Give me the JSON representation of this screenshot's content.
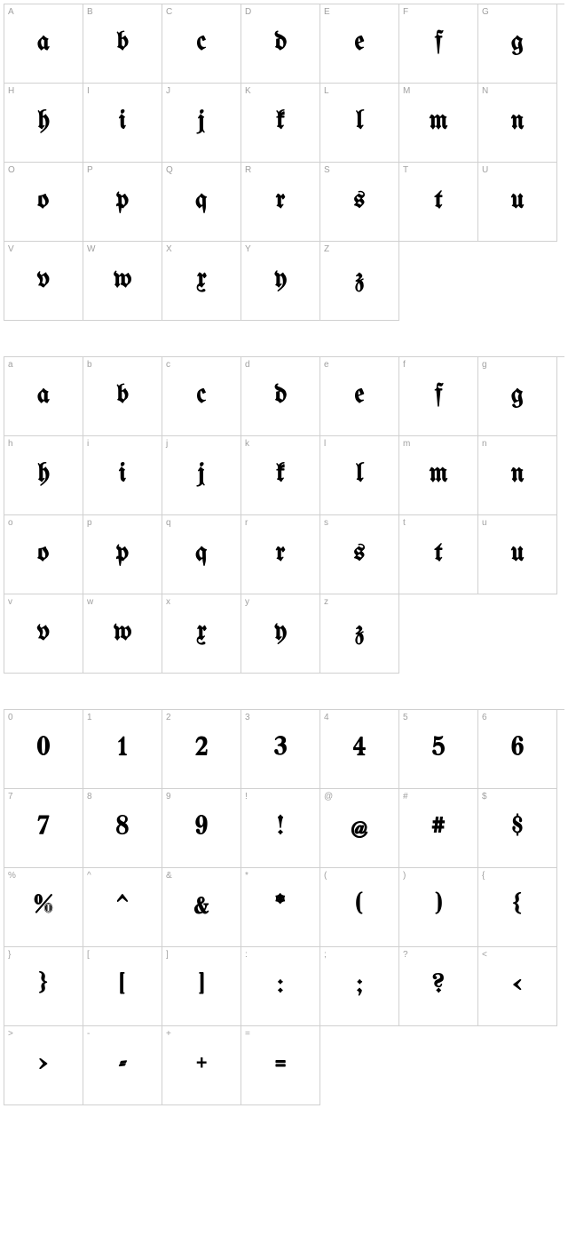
{
  "sections": [
    {
      "id": "uppercase",
      "cells": [
        {
          "label": "A",
          "glyph": "a"
        },
        {
          "label": "B",
          "glyph": "b"
        },
        {
          "label": "C",
          "glyph": "c"
        },
        {
          "label": "D",
          "glyph": "d"
        },
        {
          "label": "E",
          "glyph": "e"
        },
        {
          "label": "F",
          "glyph": "f"
        },
        {
          "label": "G",
          "glyph": "g"
        },
        {
          "label": "H",
          "glyph": "h"
        },
        {
          "label": "I",
          "glyph": "i"
        },
        {
          "label": "J",
          "glyph": "j"
        },
        {
          "label": "K",
          "glyph": "k"
        },
        {
          "label": "L",
          "glyph": "l"
        },
        {
          "label": "M",
          "glyph": "m"
        },
        {
          "label": "N",
          "glyph": "n"
        },
        {
          "label": "O",
          "glyph": "o"
        },
        {
          "label": "P",
          "glyph": "p"
        },
        {
          "label": "Q",
          "glyph": "q"
        },
        {
          "label": "R",
          "glyph": "r"
        },
        {
          "label": "S",
          "glyph": "s"
        },
        {
          "label": "T",
          "glyph": "t"
        },
        {
          "label": "U",
          "glyph": "u"
        },
        {
          "label": "V",
          "glyph": "v"
        },
        {
          "label": "W",
          "glyph": "w"
        },
        {
          "label": "X",
          "glyph": "x"
        },
        {
          "label": "Y",
          "glyph": "y"
        },
        {
          "label": "Z",
          "glyph": "z"
        }
      ]
    },
    {
      "id": "lowercase",
      "cells": [
        {
          "label": "a",
          "glyph": "a"
        },
        {
          "label": "b",
          "glyph": "b"
        },
        {
          "label": "c",
          "glyph": "c"
        },
        {
          "label": "d",
          "glyph": "d"
        },
        {
          "label": "e",
          "glyph": "e"
        },
        {
          "label": "f",
          "glyph": "f"
        },
        {
          "label": "g",
          "glyph": "g"
        },
        {
          "label": "h",
          "glyph": "h"
        },
        {
          "label": "i",
          "glyph": "i"
        },
        {
          "label": "j",
          "glyph": "j"
        },
        {
          "label": "k",
          "glyph": "k"
        },
        {
          "label": "l",
          "glyph": "l"
        },
        {
          "label": "m",
          "glyph": "m"
        },
        {
          "label": "n",
          "glyph": "n"
        },
        {
          "label": "o",
          "glyph": "o"
        },
        {
          "label": "p",
          "glyph": "p"
        },
        {
          "label": "q",
          "glyph": "q"
        },
        {
          "label": "r",
          "glyph": "r"
        },
        {
          "label": "s",
          "glyph": "s"
        },
        {
          "label": "t",
          "glyph": "t"
        },
        {
          "label": "u",
          "glyph": "u"
        },
        {
          "label": "v",
          "glyph": "v"
        },
        {
          "label": "w",
          "glyph": "w"
        },
        {
          "label": "x",
          "glyph": "x"
        },
        {
          "label": "y",
          "glyph": "y"
        },
        {
          "label": "z",
          "glyph": "z"
        }
      ]
    },
    {
      "id": "numbers-symbols",
      "cells": [
        {
          "label": "0",
          "glyph": "0"
        },
        {
          "label": "1",
          "glyph": "1"
        },
        {
          "label": "2",
          "glyph": "2"
        },
        {
          "label": "3",
          "glyph": "3"
        },
        {
          "label": "4",
          "glyph": "4"
        },
        {
          "label": "5",
          "glyph": "5"
        },
        {
          "label": "6",
          "glyph": "6"
        },
        {
          "label": "7",
          "glyph": "7"
        },
        {
          "label": "8",
          "glyph": "8"
        },
        {
          "label": "9",
          "glyph": "9"
        },
        {
          "label": "!",
          "glyph": "!"
        },
        {
          "label": "@",
          "glyph": "@"
        },
        {
          "label": "#",
          "glyph": "#"
        },
        {
          "label": "$",
          "glyph": "$"
        },
        {
          "label": "%",
          "glyph": "%"
        },
        {
          "label": "^",
          "glyph": "^"
        },
        {
          "label": "&",
          "glyph": "&"
        },
        {
          "label": "*",
          "glyph": "*"
        },
        {
          "label": "(",
          "glyph": "("
        },
        {
          "label": ")",
          "glyph": ")"
        },
        {
          "label": "{",
          "glyph": "{"
        },
        {
          "label": "}",
          "glyph": "}"
        },
        {
          "label": "[",
          "glyph": "["
        },
        {
          "label": "]",
          "glyph": "]"
        },
        {
          "label": ":",
          "glyph": ":"
        },
        {
          "label": ";",
          "glyph": ";"
        },
        {
          "label": "?",
          "glyph": "?"
        },
        {
          "label": "<",
          "glyph": "<"
        },
        {
          "label": ">",
          "glyph": ">"
        },
        {
          "label": "-",
          "glyph": "-"
        },
        {
          "label": "+",
          "glyph": "+"
        },
        {
          "label": "=",
          "glyph": "="
        }
      ]
    }
  ],
  "styling": {
    "cell_size": 89,
    "columns": 7,
    "border_color": "#d0d0d0",
    "label_color": "#a0a0a0",
    "label_fontsize": 10,
    "glyph_color": "#000000",
    "glyph_fontsize": 30,
    "background_color": "#ffffff",
    "section_gap": 40
  }
}
